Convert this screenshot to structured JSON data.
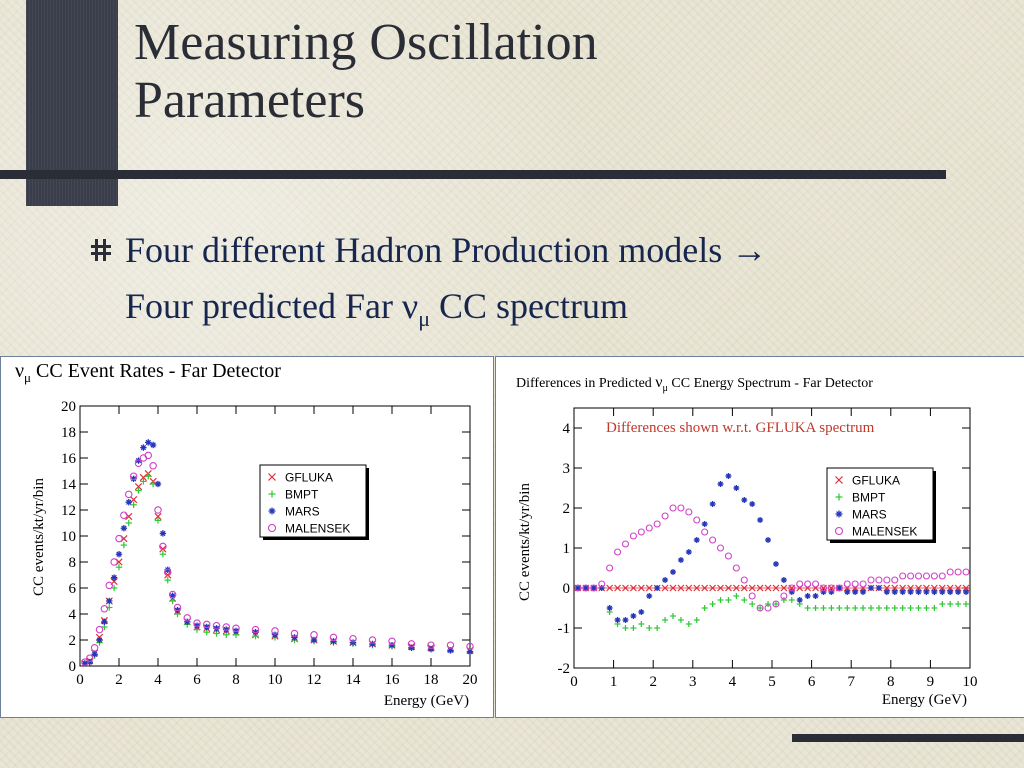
{
  "slide": {
    "title_line1": "Measuring Oscillation",
    "title_line2": "Parameters",
    "bullet_line1": "Four different Hadron Production models →",
    "bullet_line2_pre": "Four predicted Far ν",
    "bullet_line2_sub": "μ",
    "bullet_line2_post": " CC spectrum",
    "colors": {
      "background": "#e9e6d6",
      "bar": "#2b2d36",
      "text": "#16264e"
    }
  },
  "chart_data": [
    {
      "type": "scatter",
      "title_nu": "ν",
      "title_sub": "μ",
      "title_rest": " CC Event Rates - Far Detector",
      "xlabel": "Energy (GeV)",
      "ylabel": "CC events/kt/yr/bin",
      "xlim": [
        0,
        20
      ],
      "ylim": [
        0,
        20
      ],
      "xticks": [
        0,
        2,
        4,
        6,
        8,
        10,
        12,
        14,
        16,
        18,
        20
      ],
      "yticks": [
        0,
        2,
        4,
        6,
        8,
        10,
        12,
        14,
        16,
        18,
        20
      ],
      "legend_position": "right",
      "x": [
        0.25,
        0.5,
        0.75,
        1.0,
        1.25,
        1.5,
        1.75,
        2.0,
        2.25,
        2.5,
        2.75,
        3.0,
        3.25,
        3.5,
        3.75,
        4.0,
        4.25,
        4.5,
        4.75,
        5.0,
        5.5,
        6.0,
        6.5,
        7.0,
        7.5,
        8.0,
        9.0,
        10.0,
        11.0,
        12.0,
        13.0,
        14.0,
        15.0,
        16.0,
        17.0,
        18.0,
        19.0,
        20.0
      ],
      "series": [
        {
          "name": "GFLUKA",
          "marker": "x",
          "color": "#e0303a",
          "values": [
            0.2,
            0.4,
            1.0,
            2.2,
            3.5,
            5.0,
            6.5,
            8.0,
            9.8,
            11.5,
            12.8,
            13.8,
            14.5,
            14.8,
            14.2,
            11.5,
            9.0,
            7.0,
            5.2,
            4.2,
            3.4,
            3.0,
            2.9,
            2.8,
            2.7,
            2.6,
            2.4,
            2.3,
            2.1,
            2.0,
            1.9,
            1.8,
            1.7,
            1.6,
            1.5,
            1.4,
            1.3,
            1.2
          ]
        },
        {
          "name": "BMPT",
          "marker": "plus",
          "color": "#2cc832",
          "values": [
            0.2,
            0.3,
            0.8,
            1.8,
            3.0,
            4.5,
            6.0,
            7.6,
            9.3,
            11.0,
            12.4,
            13.5,
            14.2,
            14.6,
            14.0,
            11.2,
            8.6,
            6.6,
            5.0,
            4.0,
            3.2,
            2.8,
            2.6,
            2.5,
            2.4,
            2.4,
            2.3,
            2.2,
            2.0,
            1.9,
            1.8,
            1.7,
            1.6,
            1.5,
            1.4,
            1.3,
            1.2,
            1.1
          ]
        },
        {
          "name": "MARS",
          "marker": "star",
          "color": "#2435b8",
          "values": [
            0.2,
            0.3,
            0.9,
            2.0,
            3.4,
            5.0,
            6.8,
            8.6,
            10.6,
            12.6,
            14.4,
            15.8,
            16.8,
            17.2,
            17.0,
            14.0,
            10.2,
            7.4,
            5.4,
            4.3,
            3.4,
            3.1,
            3.0,
            2.9,
            2.8,
            2.7,
            2.6,
            2.4,
            2.2,
            2.0,
            1.9,
            1.8,
            1.7,
            1.6,
            1.4,
            1.3,
            1.2,
            1.1
          ]
        },
        {
          "name": "MALENSEK",
          "marker": "circle",
          "color": "#d040c8",
          "values": [
            0.3,
            0.6,
            1.4,
            2.8,
            4.4,
            6.2,
            8.0,
            9.8,
            11.6,
            13.2,
            14.6,
            15.6,
            16.0,
            16.2,
            15.4,
            12.0,
            9.2,
            7.2,
            5.5,
            4.5,
            3.7,
            3.3,
            3.2,
            3.1,
            3.0,
            2.9,
            2.8,
            2.7,
            2.5,
            2.4,
            2.2,
            2.1,
            2.0,
            1.9,
            1.7,
            1.6,
            1.6,
            1.5
          ]
        }
      ]
    },
    {
      "type": "scatter",
      "title_pre": "Differences in Predicted  ",
      "title_nu": "ν",
      "title_sub": "μ",
      "title_rest": " CC Energy Spectrum - Far Detector",
      "annotation": "Differences shown w.r.t. GFLUKA spectrum",
      "xlabel": "Energy (GeV)",
      "ylabel": "CC events/kt/yr/bin",
      "xlim": [
        0,
        10
      ],
      "ylim": [
        -2,
        4.5
      ],
      "xticks": [
        0,
        1,
        2,
        3,
        4,
        5,
        6,
        7,
        8,
        9,
        10
      ],
      "yticks": [
        -2,
        -1,
        0,
        1,
        2,
        3,
        4
      ],
      "legend_position": "right",
      "x": [
        0.1,
        0.3,
        0.5,
        0.7,
        0.9,
        1.1,
        1.3,
        1.5,
        1.7,
        1.9,
        2.1,
        2.3,
        2.5,
        2.7,
        2.9,
        3.1,
        3.3,
        3.5,
        3.7,
        3.9,
        4.1,
        4.3,
        4.5,
        4.7,
        4.9,
        5.1,
        5.3,
        5.5,
        5.7,
        5.9,
        6.1,
        6.3,
        6.5,
        6.7,
        6.9,
        7.1,
        7.3,
        7.5,
        7.7,
        7.9,
        8.1,
        8.3,
        8.5,
        8.7,
        8.9,
        9.1,
        9.3,
        9.5,
        9.7,
        9.9
      ],
      "series": [
        {
          "name": "GFLUKA",
          "marker": "x",
          "color": "#e0303a",
          "values": [
            0,
            0,
            0,
            0,
            0,
            0,
            0,
            0,
            0,
            0,
            0,
            0,
            0,
            0,
            0,
            0,
            0,
            0,
            0,
            0,
            0,
            0,
            0,
            0,
            0,
            0,
            0,
            0,
            0,
            0,
            0,
            0,
            0,
            0,
            0,
            0,
            0,
            0,
            0,
            0,
            0,
            0,
            0,
            0,
            0,
            0,
            0,
            0,
            0,
            0
          ]
        },
        {
          "name": "BMPT",
          "marker": "plus",
          "color": "#2cc832",
          "values": [
            0,
            0,
            0,
            0,
            -0.6,
            -0.9,
            -1.0,
            -1.0,
            -0.9,
            -1.0,
            -1.0,
            -0.8,
            -0.7,
            -0.8,
            -0.9,
            -0.8,
            -0.5,
            -0.4,
            -0.3,
            -0.3,
            -0.2,
            -0.3,
            -0.4,
            -0.5,
            -0.4,
            -0.4,
            -0.3,
            -0.3,
            -0.4,
            -0.5,
            -0.5,
            -0.5,
            -0.5,
            -0.5,
            -0.5,
            -0.5,
            -0.5,
            -0.5,
            -0.5,
            -0.5,
            -0.5,
            -0.5,
            -0.5,
            -0.5,
            -0.5,
            -0.5,
            -0.4,
            -0.4,
            -0.4,
            -0.4
          ]
        },
        {
          "name": "MARS",
          "marker": "star",
          "color": "#2435b8",
          "values": [
            0,
            0,
            0,
            0,
            -0.5,
            -0.8,
            -0.8,
            -0.7,
            -0.6,
            -0.2,
            0.0,
            0.2,
            0.4,
            0.7,
            0.9,
            1.2,
            1.6,
            2.1,
            2.6,
            2.8,
            2.5,
            2.2,
            2.1,
            1.7,
            1.2,
            0.6,
            0.2,
            -0.1,
            -0.3,
            -0.2,
            -0.2,
            -0.1,
            -0.1,
            0.0,
            -0.1,
            -0.1,
            -0.1,
            0.0,
            0.0,
            -0.1,
            -0.1,
            -0.1,
            -0.1,
            -0.1,
            -0.1,
            -0.1,
            -0.1,
            -0.1,
            -0.1,
            -0.1
          ]
        },
        {
          "name": "MALENSEK",
          "marker": "circle",
          "color": "#d040c8",
          "values": [
            0,
            0,
            0,
            0.1,
            0.5,
            0.9,
            1.1,
            1.3,
            1.4,
            1.5,
            1.6,
            1.8,
            2.0,
            2.0,
            1.9,
            1.7,
            1.4,
            1.2,
            1.0,
            0.8,
            0.5,
            0.2,
            -0.2,
            -0.5,
            -0.5,
            -0.4,
            -0.2,
            0.0,
            0.1,
            0.1,
            0.1,
            0.0,
            0.0,
            0.0,
            0.1,
            0.1,
            0.1,
            0.2,
            0.2,
            0.2,
            0.2,
            0.3,
            0.3,
            0.3,
            0.3,
            0.3,
            0.3,
            0.4,
            0.4,
            0.4
          ]
        }
      ]
    }
  ]
}
